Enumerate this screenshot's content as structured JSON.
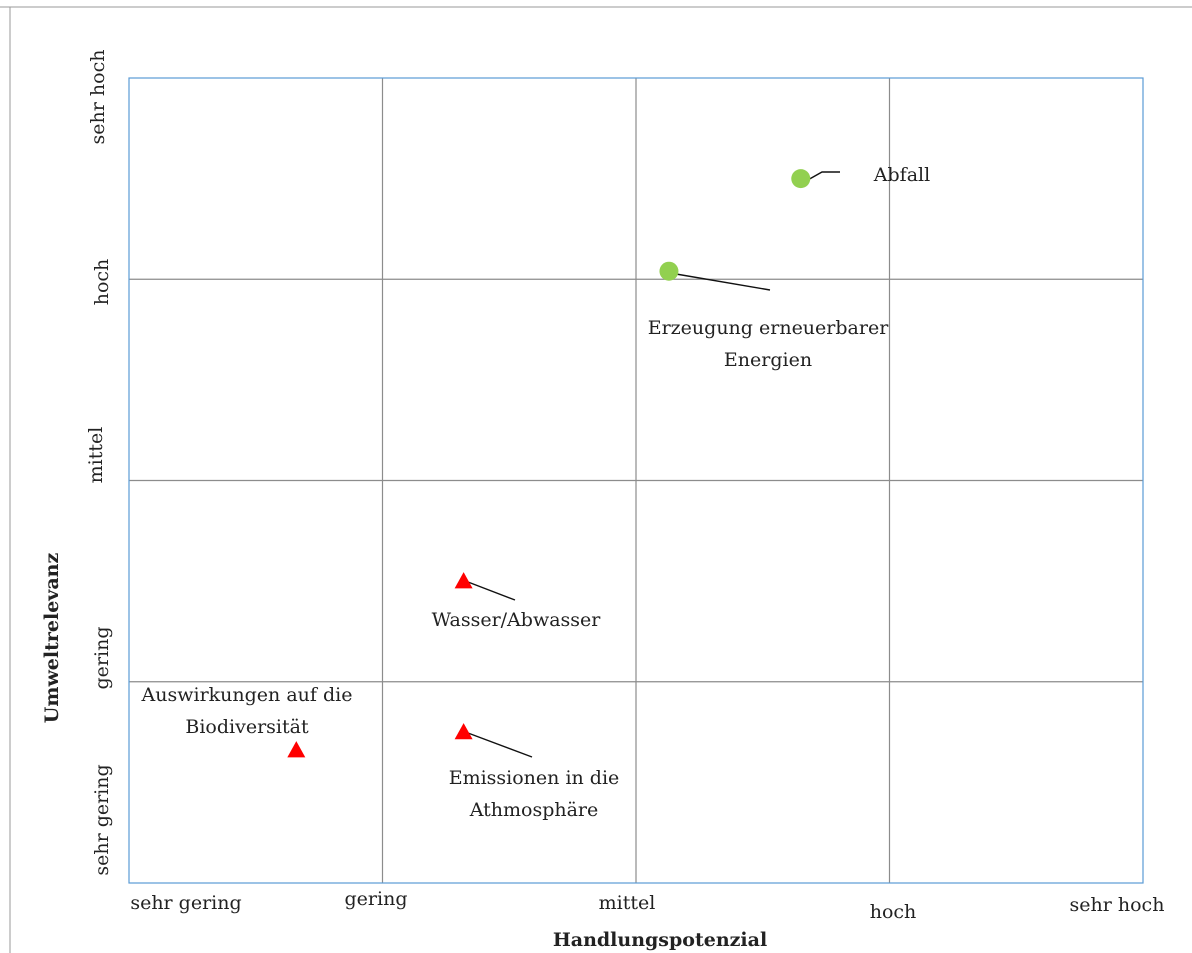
{
  "chart_data": {
    "type": "scatter",
    "title": "",
    "xlabel": "Handlungspotenzial",
    "ylabel": "Umweltrelevanz",
    "x_ticks": [
      "sehr gering",
      "gering",
      "mittel",
      "hoch",
      "sehr hoch"
    ],
    "y_ticks": [
      "sehr gering",
      "gering",
      "mittel",
      "hoch",
      "sehr hoch"
    ],
    "xlim": [
      0,
      4
    ],
    "ylim": [
      0,
      4
    ],
    "grid": true,
    "colors": {
      "frame": "#5b9bd5",
      "grid": "#8c8c8c",
      "green_series": "#92d050",
      "red_series": "#ff0000"
    },
    "points": [
      {
        "label": "Abfall",
        "x": 2.65,
        "y": 3.5,
        "marker": "circle",
        "color": "#92d050"
      },
      {
        "label": "Erzeugung erneuerbarer Energien",
        "x": 2.13,
        "y": 3.04,
        "marker": "circle",
        "color": "#92d050"
      },
      {
        "label": "Wasser/Abwasser",
        "x": 1.32,
        "y": 1.5,
        "marker": "triangle",
        "color": "#ff0000"
      },
      {
        "label": "Auswirkungen auf die Biodiversität",
        "x": 0.66,
        "y": 0.66,
        "marker": "triangle",
        "color": "#ff0000"
      },
      {
        "label": "Emissionen in die Athmosphäre",
        "x": 1.32,
        "y": 0.75,
        "marker": "triangle",
        "color": "#ff0000"
      }
    ]
  }
}
